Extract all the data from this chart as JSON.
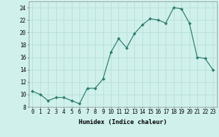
{
  "x": [
    0,
    1,
    2,
    3,
    4,
    5,
    6,
    7,
    8,
    9,
    10,
    11,
    12,
    13,
    14,
    15,
    16,
    17,
    18,
    19,
    20,
    21,
    22,
    23
  ],
  "y": [
    10.5,
    10.0,
    9.0,
    9.5,
    9.5,
    9.0,
    8.5,
    11.0,
    11.0,
    12.5,
    16.8,
    19.0,
    17.5,
    19.8,
    21.2,
    22.2,
    22.0,
    21.5,
    24.0,
    23.8,
    21.5,
    16.0,
    15.8,
    14.0
  ],
  "line_color": "#2d7d6e",
  "marker": "D",
  "marker_size": 2.0,
  "bg_color": "#cff0eb",
  "grid_color": "#b8ddd8",
  "xlabel": "Humidex (Indice chaleur)",
  "xlim": [
    -0.5,
    23.5
  ],
  "ylim": [
    8,
    25
  ],
  "yticks": [
    8,
    10,
    12,
    14,
    16,
    18,
    20,
    22,
    24
  ],
  "xticks": [
    0,
    1,
    2,
    3,
    4,
    5,
    6,
    7,
    8,
    9,
    10,
    11,
    12,
    13,
    14,
    15,
    16,
    17,
    18,
    19,
    20,
    21,
    22,
    23
  ],
  "xlabel_fontsize": 6.5,
  "tick_fontsize": 5.5,
  "linewidth": 0.9
}
